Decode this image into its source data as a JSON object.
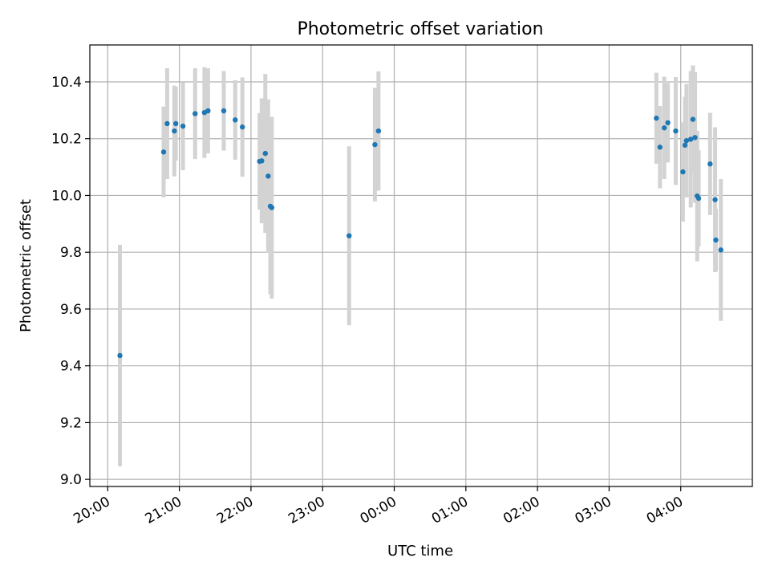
{
  "chart_data": {
    "type": "scatter",
    "title": "Photometric offset variation",
    "xlabel": "UTC time",
    "ylabel": "Photometric offset",
    "x_unit": "hours since 20:00",
    "xlim": [
      -0.25,
      9.0
    ],
    "ylim": [
      8.975,
      10.53
    ],
    "grid": true,
    "x_ticks": [
      {
        "value": 0,
        "label": "20:00"
      },
      {
        "value": 1,
        "label": "21:00"
      },
      {
        "value": 2,
        "label": "22:00"
      },
      {
        "value": 3,
        "label": "23:00"
      },
      {
        "value": 4,
        "label": "00:00"
      },
      {
        "value": 5,
        "label": "01:00"
      },
      {
        "value": 6,
        "label": "02:00"
      },
      {
        "value": 7,
        "label": "03:00"
      },
      {
        "value": 8,
        "label": "04:00"
      }
    ],
    "y_ticks": [
      {
        "value": 9.0,
        "label": "9.0"
      },
      {
        "value": 9.2,
        "label": "9.2"
      },
      {
        "value": 9.4,
        "label": "9.4"
      },
      {
        "value": 9.6,
        "label": "9.6"
      },
      {
        "value": 9.8,
        "label": "9.8"
      },
      {
        "value": 10.0,
        "label": "10.0"
      },
      {
        "value": 10.2,
        "label": "10.2"
      },
      {
        "value": 10.4,
        "label": "10.4"
      }
    ],
    "marker_color": "#1f77b4",
    "errorbar_color": "#d3d3d3",
    "points": [
      {
        "x": 0.17,
        "y": 9.436,
        "err": 0.39
      },
      {
        "x": 0.78,
        "y": 10.153,
        "err": 0.16
      },
      {
        "x": 0.83,
        "y": 10.253,
        "err": 0.195
      },
      {
        "x": 0.93,
        "y": 10.227,
        "err": 0.16
      },
      {
        "x": 0.95,
        "y": 10.253,
        "err": 0.13
      },
      {
        "x": 1.05,
        "y": 10.244,
        "err": 0.155
      },
      {
        "x": 1.22,
        "y": 10.288,
        "err": 0.16
      },
      {
        "x": 1.35,
        "y": 10.292,
        "err": 0.16
      },
      {
        "x": 1.4,
        "y": 10.298,
        "err": 0.15
      },
      {
        "x": 1.62,
        "y": 10.298,
        "err": 0.14
      },
      {
        "x": 1.78,
        "y": 10.266,
        "err": 0.14
      },
      {
        "x": 1.88,
        "y": 10.241,
        "err": 0.175
      },
      {
        "x": 2.12,
        "y": 10.12,
        "err": 0.17
      },
      {
        "x": 2.15,
        "y": 10.122,
        "err": 0.22
      },
      {
        "x": 2.2,
        "y": 10.148,
        "err": 0.28
      },
      {
        "x": 2.24,
        "y": 10.068,
        "err": 0.27
      },
      {
        "x": 2.27,
        "y": 9.962,
        "err": 0.31
      },
      {
        "x": 2.29,
        "y": 9.957,
        "err": 0.32
      },
      {
        "x": 3.37,
        "y": 9.858,
        "err": 0.315
      },
      {
        "x": 3.73,
        "y": 10.179,
        "err": 0.2
      },
      {
        "x": 3.78,
        "y": 10.227,
        "err": 0.21
      },
      {
        "x": 7.66,
        "y": 10.272,
        "err": 0.16
      },
      {
        "x": 7.71,
        "y": 10.17,
        "err": 0.145
      },
      {
        "x": 7.77,
        "y": 10.238,
        "err": 0.18
      },
      {
        "x": 7.82,
        "y": 10.256,
        "err": 0.14
      },
      {
        "x": 7.93,
        "y": 10.227,
        "err": 0.19
      },
      {
        "x": 8.03,
        "y": 10.083,
        "err": 0.175
      },
      {
        "x": 8.06,
        "y": 10.177,
        "err": 0.17
      },
      {
        "x": 8.08,
        "y": 10.193,
        "err": 0.2
      },
      {
        "x": 8.14,
        "y": 10.198,
        "err": 0.24
      },
      {
        "x": 8.17,
        "y": 10.268,
        "err": 0.19
      },
      {
        "x": 8.2,
        "y": 10.204,
        "err": 0.23
      },
      {
        "x": 8.23,
        "y": 9.998,
        "err": 0.23
      },
      {
        "x": 8.25,
        "y": 9.99,
        "err": 0.17
      },
      {
        "x": 8.41,
        "y": 10.111,
        "err": 0.18
      },
      {
        "x": 8.48,
        "y": 9.985,
        "err": 0.255
      },
      {
        "x": 8.49,
        "y": 9.843,
        "err": 0.11
      },
      {
        "x": 8.56,
        "y": 9.808,
        "err": 0.25
      }
    ]
  }
}
